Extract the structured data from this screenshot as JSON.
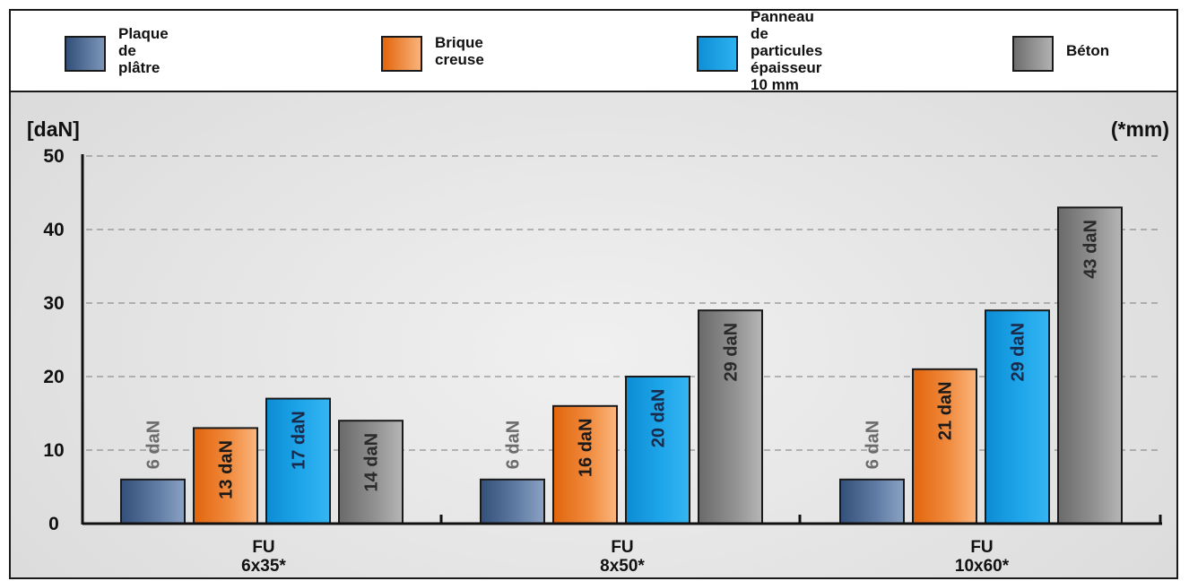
{
  "legend": [
    {
      "name": "Plaque de plâtre",
      "color": "#4a6b96"
    },
    {
      "name": "Brique creuse",
      "color": "#ee7d22"
    },
    {
      "name": "Panneau de particules\népaisseur 10 mm",
      "color": "#1a9ee0"
    },
    {
      "name": "Béton",
      "color": "#8a8a8a"
    }
  ],
  "chart_data": {
    "type": "bar",
    "ylabel": "[daN]",
    "unit_note": "(*mm)",
    "ylim": [
      0,
      50
    ],
    "yticks": [
      0,
      10,
      20,
      30,
      40,
      50
    ],
    "grid": "dashed",
    "legend_position": "top",
    "categories": [
      {
        "line1": "FU",
        "line2": "6x35*"
      },
      {
        "line1": "FU",
        "line2": "8x50*"
      },
      {
        "line1": "FU",
        "line2": "10x60*"
      }
    ],
    "series": [
      {
        "name": "Plaque de plâtre",
        "values": [
          6,
          6,
          6
        ],
        "labels": [
          "6 daN",
          "6 daN",
          "6 daN"
        ],
        "label_color": "#6b6b6b"
      },
      {
        "name": "Brique creuse",
        "values": [
          13,
          16,
          21
        ],
        "labels": [
          "13 daN",
          "16 daN",
          "21 daN"
        ],
        "label_color": "#1a1a1a"
      },
      {
        "name": "Panneau de particules épaisseur 10 mm",
        "values": [
          17,
          20,
          29
        ],
        "labels": [
          "17 daN",
          "20 daN",
          "29 daN"
        ],
        "label_color": "#1a2a4a"
      },
      {
        "name": "Béton",
        "values": [
          14,
          29,
          43
        ],
        "labels": [
          "14 daN",
          "29 daN",
          "43 daN"
        ],
        "label_color": "#2a2a2a"
      }
    ]
  }
}
